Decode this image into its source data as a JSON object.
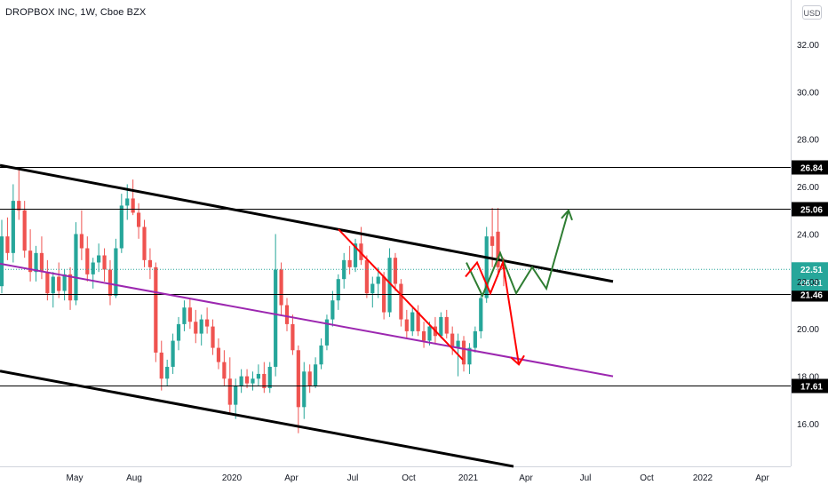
{
  "header": {
    "title": "DROPBOX INC, 1W, Cboe BZX",
    "currency": "USD"
  },
  "chart_data": {
    "type": "candlestick",
    "title": "DROPBOX INC, 1W, Cboe BZX",
    "y_ticks": [
      "16.00",
      "18.00",
      "20.00",
      "22.00",
      "24.00",
      "26.00",
      "28.00",
      "30.00",
      "32.00"
    ],
    "x_ticks": [
      "May",
      "Aug",
      "2020",
      "Apr",
      "Jul",
      "Oct",
      "2021",
      "Apr",
      "Jul",
      "Oct",
      "2022",
      "Apr"
    ],
    "horizontal_levels": [
      "26.84",
      "25.06",
      "21.46",
      "17.61"
    ],
    "last_price": "22.51",
    "countdown": "06:31",
    "colors": {
      "up": "#26a69a",
      "down": "#ef5350",
      "channel": "#000000",
      "midline": "#9c27b0",
      "downtrend": "#ff0000",
      "bullish_path": "#2e7d32",
      "bearish_path": "#ff0000",
      "price_line": "#26a69a"
    }
  }
}
